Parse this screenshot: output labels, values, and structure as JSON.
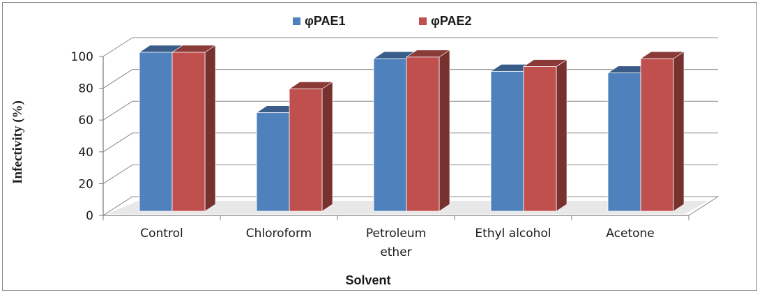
{
  "chart_data": {
    "type": "bar",
    "categories": [
      "Control",
      "Chloroform",
      "Petroleum ether",
      "Ethyl alcohol",
      "Acetone"
    ],
    "category_lines": [
      [
        "Control"
      ],
      [
        "Chloroform"
      ],
      [
        "Petroleum",
        "ether"
      ],
      [
        "Ethyl alcohol"
      ],
      [
        "Acetone"
      ]
    ],
    "series": [
      {
        "name": "φPAE1",
        "values": [
          100,
          62,
          96,
          88,
          87
        ],
        "color": "#4f81bd"
      },
      {
        "name": "φPAE2",
        "values": [
          100,
          77,
          97,
          91,
          96
        ],
        "color": "#c0504d"
      }
    ],
    "title": "",
    "xlabel": "Solvent",
    "ylabel": "Infectivity (%)",
    "ylim": [
      0,
      100
    ],
    "yticks": [
      "0",
      "20",
      "40",
      "60",
      "80",
      "100"
    ],
    "grid": true,
    "legend_position": "top",
    "style": "3d-clustered-column"
  }
}
